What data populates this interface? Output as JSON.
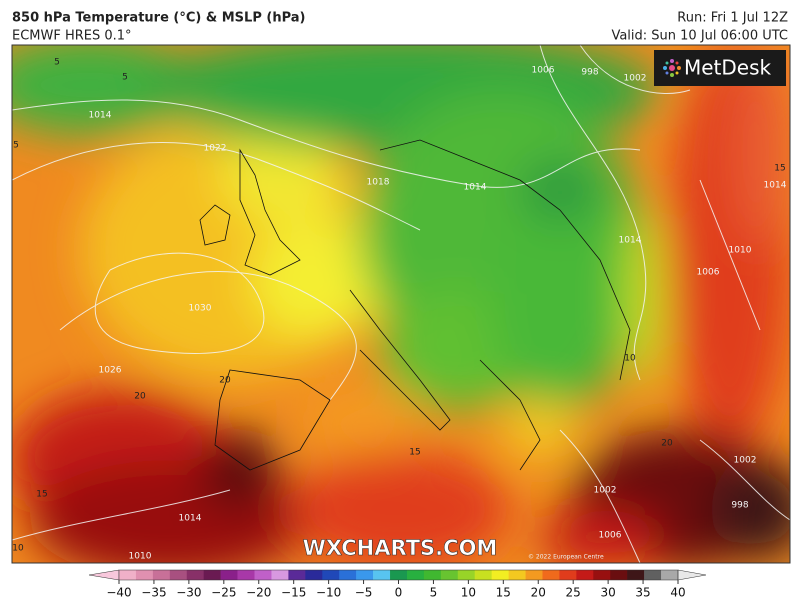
{
  "header": {
    "title": "850 hPa Temperature (°C) & MSLP (hPa)",
    "model": "ECMWF HRES 0.1°",
    "run": "Run: Fri 1 Jul 12Z",
    "valid": "Valid: Sun 10 Jul 06:00 UTC"
  },
  "logo": "MetDesk",
  "watermark": "WXCHARTS.COM",
  "copyright": "© 2022 European Centre",
  "pressure_labels": [
    "1014",
    "1022",
    "1018",
    "1014",
    "1030",
    "1026",
    "1006",
    "998",
    "1002",
    "1010",
    "1006",
    "1014",
    "1014",
    "1002",
    "1006",
    "998",
    "1002",
    "1014",
    "1010"
  ],
  "temperature_labels": [
    "5",
    "5",
    "5",
    "15",
    "20",
    "20",
    "15",
    "10",
    "15",
    "20",
    "10"
  ],
  "colorbar": {
    "ticks": [
      {
        "value": -40,
        "label": "−40"
      },
      {
        "value": -35,
        "label": "−35"
      },
      {
        "value": -30,
        "label": "−30"
      },
      {
        "value": -25,
        "label": "−25"
      },
      {
        "value": -20,
        "label": "−20"
      },
      {
        "value": -15,
        "label": "−15"
      },
      {
        "value": -10,
        "label": "−10"
      },
      {
        "value": -5,
        "label": "−5"
      },
      0,
      5,
      10,
      15,
      20,
      25,
      30,
      35,
      40
    ],
    "colors": [
      "#f8c8dc",
      "#f0b0c8",
      "#e090b0",
      "#c87098",
      "#a85080",
      "#883068",
      "#6a1a52",
      "#8a208a",
      "#a838a8",
      "#c060c8",
      "#d898e0",
      "#5a2a98",
      "#2a2a9a",
      "#2048b8",
      "#2a70d8",
      "#3a98ec",
      "#58c4f0",
      "#1a9850",
      "#28b040",
      "#40b830",
      "#68c430",
      "#98d428",
      "#c8e020",
      "#f2ee22",
      "#f4c820",
      "#f49a20",
      "#f06a1c",
      "#e03c1c",
      "#c41a18",
      "#981010",
      "#6a0e10",
      "#3e1618",
      "#606060",
      "#a8a8a8",
      "#e8e8e8"
    ]
  }
}
